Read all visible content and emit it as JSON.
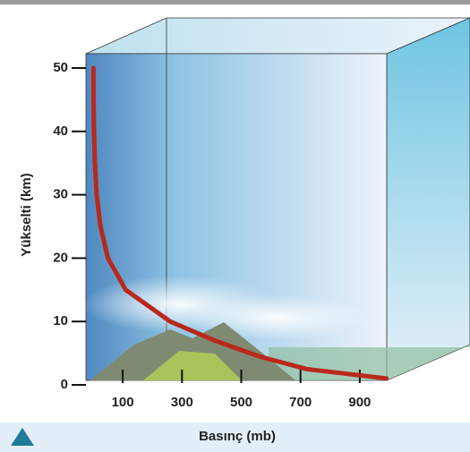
{
  "chart_data": {
    "type": "line",
    "x_label": "Basınç (mb)",
    "y_label": "Yükselti (km)",
    "x": [
      1,
      1.5,
      3,
      6,
      12,
      25,
      50,
      110,
      260,
      410,
      560,
      720,
      990
    ],
    "series": [
      {
        "color": "#b8291c",
        "values": [
          50,
          45,
          40,
          35,
          30,
          25,
          20,
          15,
          10,
          7,
          4.5,
          2.5,
          1
        ]
      }
    ],
    "xlim": [
      0,
      1000
    ],
    "xticks": [
      100,
      300,
      500,
      700,
      900
    ],
    "ylim": [
      0,
      50
    ],
    "yticks": [
      0,
      10,
      20,
      30,
      40,
      50
    ]
  }
}
